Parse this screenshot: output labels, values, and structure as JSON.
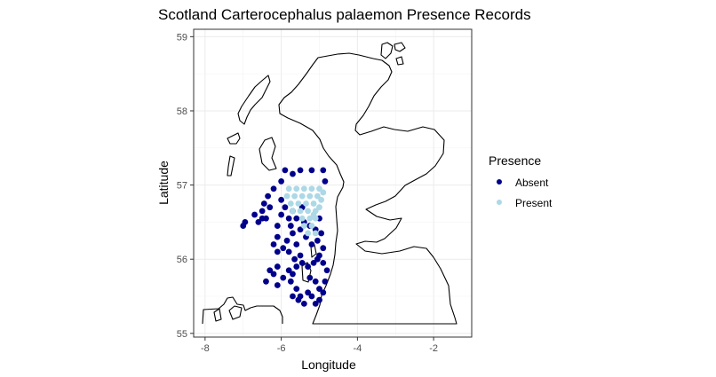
{
  "chart_data": {
    "type": "scatter",
    "title": "Scotland Carterocephalus palaemon Presence Records",
    "xlabel": "Longitude",
    "ylabel": "Latitude",
    "xlim": [
      -8.3,
      -1.0
    ],
    "ylim": [
      54.95,
      59.1
    ],
    "x_ticks": [
      -8,
      -6,
      -4,
      -2
    ],
    "y_ticks": [
      55,
      56,
      57,
      58,
      59
    ],
    "x_tick_labels": [
      "-8",
      "-6",
      "-4",
      "-2"
    ],
    "y_tick_labels": [
      "55",
      "56",
      "57",
      "58",
      "59"
    ],
    "grid": true,
    "legend_position": "right",
    "legend": {
      "title": "Presence",
      "entries": [
        {
          "label": "Absent",
          "color": "#00008b"
        },
        {
          "label": "Present",
          "color": "#add8e6"
        }
      ]
    },
    "series": [
      {
        "name": "Absent",
        "color": "#00008b",
        "points": [
          [
            -5.9,
            57.2
          ],
          [
            -5.7,
            57.15
          ],
          [
            -5.5,
            57.2
          ],
          [
            -5.2,
            57.2
          ],
          [
            -4.9,
            57.2
          ],
          [
            -4.85,
            57.05
          ],
          [
            -6.0,
            57.05
          ],
          [
            -6.2,
            56.95
          ],
          [
            -6.35,
            56.85
          ],
          [
            -6.0,
            56.8
          ],
          [
            -5.9,
            56.7
          ],
          [
            -6.3,
            56.7
          ],
          [
            -6.5,
            56.65
          ],
          [
            -6.7,
            56.6
          ],
          [
            -6.95,
            56.5
          ],
          [
            -7.0,
            56.45
          ],
          [
            -6.6,
            56.5
          ],
          [
            -6.4,
            56.55
          ],
          [
            -6.1,
            56.45
          ],
          [
            -6.1,
            56.3
          ],
          [
            -6.2,
            56.2
          ],
          [
            -6.1,
            56.1
          ],
          [
            -5.95,
            56.15
          ],
          [
            -5.8,
            56.1
          ],
          [
            -6.1,
            55.9
          ],
          [
            -6.2,
            55.8
          ],
          [
            -6.3,
            55.85
          ],
          [
            -6.4,
            55.7
          ],
          [
            -6.1,
            55.65
          ],
          [
            -5.95,
            55.75
          ],
          [
            -5.8,
            55.85
          ],
          [
            -5.7,
            55.8
          ],
          [
            -5.6,
            55.6
          ],
          [
            -5.55,
            55.45
          ],
          [
            -5.4,
            55.4
          ],
          [
            -5.3,
            55.55
          ],
          [
            -5.2,
            55.5
          ],
          [
            -5.1,
            55.4
          ],
          [
            -5.0,
            55.45
          ],
          [
            -4.9,
            55.55
          ],
          [
            -4.85,
            55.7
          ],
          [
            -4.8,
            55.85
          ],
          [
            -4.9,
            55.95
          ],
          [
            -5.0,
            56.05
          ],
          [
            -5.15,
            55.95
          ],
          [
            -5.3,
            55.9
          ],
          [
            -5.45,
            55.95
          ],
          [
            -5.5,
            56.05
          ],
          [
            -5.6,
            56.2
          ],
          [
            -5.7,
            56.35
          ],
          [
            -5.5,
            56.4
          ],
          [
            -5.35,
            56.3
          ],
          [
            -5.2,
            56.2
          ],
          [
            -5.05,
            56.25
          ],
          [
            -4.95,
            56.35
          ],
          [
            -4.9,
            56.15
          ],
          [
            -5.05,
            56.0
          ],
          [
            -5.6,
            56.55
          ],
          [
            -5.8,
            56.55
          ],
          [
            -5.75,
            56.45
          ],
          [
            -5.4,
            56.5
          ],
          [
            -5.25,
            56.45
          ],
          [
            -5.1,
            56.4
          ],
          [
            -5.0,
            56.55
          ],
          [
            -5.45,
            56.7
          ],
          [
            -5.7,
            56.65
          ],
          [
            -6.45,
            56.75
          ],
          [
            -6.5,
            56.55
          ],
          [
            -6.0,
            56.6
          ],
          [
            -5.85,
            56.25
          ],
          [
            -5.65,
            56.0
          ],
          [
            -5.6,
            55.9
          ],
          [
            -5.75,
            55.7
          ],
          [
            -5.25,
            55.75
          ],
          [
            -5.1,
            55.7
          ],
          [
            -5.0,
            55.6
          ],
          [
            -5.5,
            55.5
          ],
          [
            -5.7,
            55.5
          ]
        ]
      },
      {
        "name": "Present",
        "color": "#add8e6",
        "points": [
          [
            -5.8,
            56.95
          ],
          [
            -5.6,
            56.95
          ],
          [
            -5.4,
            56.95
          ],
          [
            -5.2,
            56.95
          ],
          [
            -5.0,
            56.95
          ],
          [
            -4.9,
            56.9
          ],
          [
            -5.85,
            56.85
          ],
          [
            -5.65,
            56.85
          ],
          [
            -5.45,
            56.85
          ],
          [
            -5.25,
            56.85
          ],
          [
            -5.05,
            56.85
          ],
          [
            -4.95,
            56.8
          ],
          [
            -5.75,
            56.75
          ],
          [
            -5.55,
            56.75
          ],
          [
            -5.35,
            56.75
          ],
          [
            -5.15,
            56.75
          ],
          [
            -5.0,
            56.7
          ],
          [
            -5.7,
            56.65
          ],
          [
            -5.5,
            56.65
          ],
          [
            -5.3,
            56.65
          ],
          [
            -5.1,
            56.65
          ],
          [
            -5.45,
            56.55
          ],
          [
            -5.25,
            56.55
          ],
          [
            -5.1,
            56.55
          ],
          [
            -5.4,
            56.45
          ],
          [
            -5.2,
            56.45
          ],
          [
            -5.1,
            56.35
          ],
          [
            -5.3,
            56.35
          ],
          [
            -5.15,
            56.6
          ]
        ]
      }
    ]
  }
}
